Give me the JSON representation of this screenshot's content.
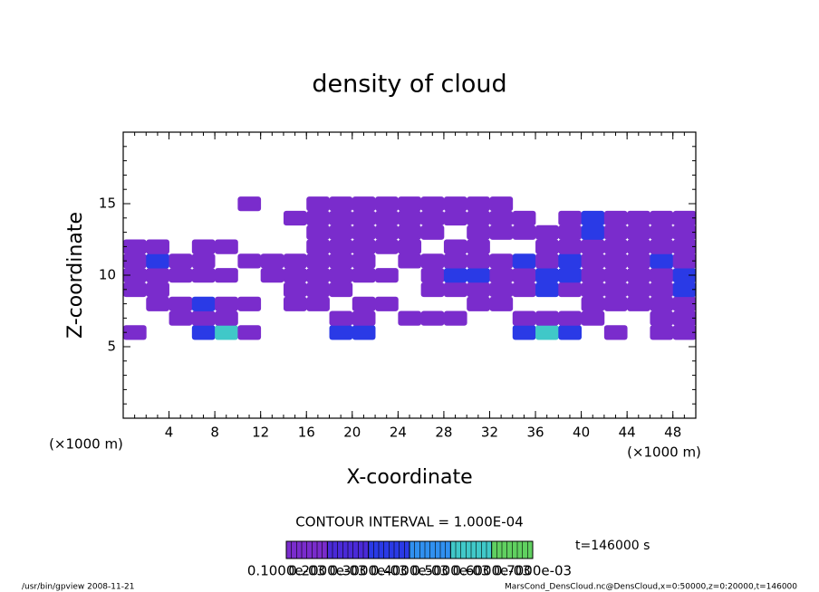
{
  "chart_data": {
    "type": "contour",
    "title": "density of cloud",
    "x_label": "X-coordinate",
    "y_label": "Z-coordinate",
    "x_unit": "(×1000 m)",
    "y_unit": "(×1000 m)",
    "xlim": [
      0,
      50
    ],
    "xticks": [
      4,
      8,
      12,
      16,
      20,
      24,
      28,
      32,
      36,
      40,
      44,
      48
    ],
    "ylim": [
      0,
      20
    ],
    "yticks": [
      5,
      10,
      15
    ],
    "x": [
      1,
      3,
      5,
      7,
      9,
      11,
      13,
      15,
      17,
      19,
      21,
      23,
      25,
      27,
      29,
      31,
      33,
      35,
      37,
      39,
      41,
      43,
      45,
      47,
      49
    ],
    "z": [
      6,
      7,
      8,
      9,
      10,
      11,
      12,
      13,
      14,
      15
    ],
    "z_values": [
      [
        0.00015,
        null,
        null,
        0.0003,
        0.0005,
        0.00015,
        null,
        null,
        null,
        0.0003,
        0.0003,
        null,
        null,
        null,
        null,
        null,
        null,
        0.0003,
        0.0005,
        0.0003,
        null,
        0.00015,
        null,
        0.00015,
        0.00015
      ],
      [
        null,
        null,
        0.00015,
        0.00015,
        0.00015,
        null,
        null,
        null,
        null,
        0.00015,
        0.00015,
        null,
        0.00015,
        0.00015,
        0.00015,
        null,
        null,
        0.00015,
        0.00015,
        0.00015,
        0.00015,
        null,
        null,
        0.00015,
        0.00015
      ],
      [
        null,
        0.00015,
        0.00015,
        0.0003,
        0.00015,
        0.00015,
        null,
        0.00015,
        0.00015,
        null,
        0.00015,
        0.00015,
        null,
        null,
        null,
        0.00015,
        0.00015,
        null,
        null,
        null,
        0.00015,
        0.00015,
        0.00015,
        0.00015,
        0.00015
      ],
      [
        0.00015,
        0.00015,
        null,
        null,
        null,
        null,
        null,
        0.00015,
        0.00015,
        0.00015,
        null,
        null,
        null,
        0.00015,
        0.00015,
        0.00015,
        0.00015,
        0.00015,
        0.0003,
        0.00015,
        0.00015,
        0.00015,
        0.00015,
        0.00015,
        0.0003
      ],
      [
        0.00015,
        0.00015,
        0.00015,
        0.00015,
        0.00015,
        null,
        0.00015,
        0.00015,
        0.00015,
        0.00015,
        0.00015,
        0.00015,
        null,
        0.00015,
        0.0003,
        0.0003,
        0.00015,
        0.00015,
        0.0003,
        0.0003,
        0.00015,
        0.00015,
        0.00015,
        0.00015,
        0.0003
      ],
      [
        0.00015,
        0.0003,
        0.00015,
        0.00015,
        null,
        0.00015,
        0.00015,
        0.00015,
        0.00015,
        0.00015,
        0.00015,
        null,
        0.00015,
        0.00015,
        0.00015,
        0.00015,
        0.00015,
        0.0003,
        0.00015,
        0.0003,
        0.00015,
        0.00015,
        0.00015,
        0.0003,
        0.00015
      ],
      [
        0.00015,
        0.00015,
        null,
        0.00015,
        0.00015,
        null,
        null,
        null,
        0.00015,
        0.00015,
        0.00015,
        0.00015,
        0.00015,
        null,
        0.00015,
        0.00015,
        null,
        null,
        0.00015,
        0.00015,
        0.00015,
        0.00015,
        0.00015,
        0.00015,
        0.00015
      ],
      [
        null,
        null,
        null,
        null,
        null,
        null,
        null,
        null,
        0.00015,
        0.00015,
        0.00015,
        0.00015,
        0.00015,
        0.00015,
        null,
        0.00015,
        0.00015,
        0.00015,
        0.00015,
        0.00015,
        0.0003,
        0.00015,
        0.00015,
        0.00015,
        0.00015
      ],
      [
        null,
        null,
        null,
        null,
        null,
        null,
        null,
        0.00015,
        0.00015,
        0.00015,
        0.00015,
        0.00015,
        0.00015,
        0.00015,
        0.00015,
        0.00015,
        0.00015,
        0.00015,
        null,
        0.00015,
        0.0003,
        0.00015,
        0.00015,
        0.00015,
        0.00015
      ],
      [
        null,
        null,
        null,
        null,
        null,
        0.00015,
        null,
        null,
        0.00015,
        0.00015,
        0.00015,
        0.00015,
        0.00015,
        0.00015,
        0.00015,
        0.00015,
        0.00015,
        null,
        null,
        null,
        null,
        null,
        null,
        null,
        null
      ]
    ],
    "levels": [
      0.0001,
      0.0002,
      0.0003,
      0.0004,
      0.0005,
      0.0006,
      0.0007
    ],
    "colors": [
      "#7a2ccc",
      "#4a2ad8",
      "#2a3ae6",
      "#3090f0",
      "#40c8c8",
      "#60d060",
      "#e07030"
    ],
    "colorbar_ticks": [
      {
        "value": 0.0001,
        "label": "0.1000e-03"
      },
      {
        "value": 0.0002,
        "label": "0.2000e-03"
      },
      {
        "value": 0.0003,
        "label": "0.3000e-03"
      },
      {
        "value": 0.0004,
        "label": "0.4000e-03"
      },
      {
        "value": 0.0005,
        "label": "0.5000e-03"
      },
      {
        "value": 0.0006,
        "label": "0.6000e-03"
      },
      {
        "value": 0.0007,
        "label": "0.7000e-03"
      }
    ],
    "contour_interval": "CONTOUR INTERVAL = 1.000E-04",
    "time_label": "t=146000 s",
    "footer_left": "/usr/bin/gpview  2008-11-21",
    "footer_right": "MarsCond_DensCloud.nc@DensCloud,x=0:50000,z=0:20000,t=146000"
  }
}
